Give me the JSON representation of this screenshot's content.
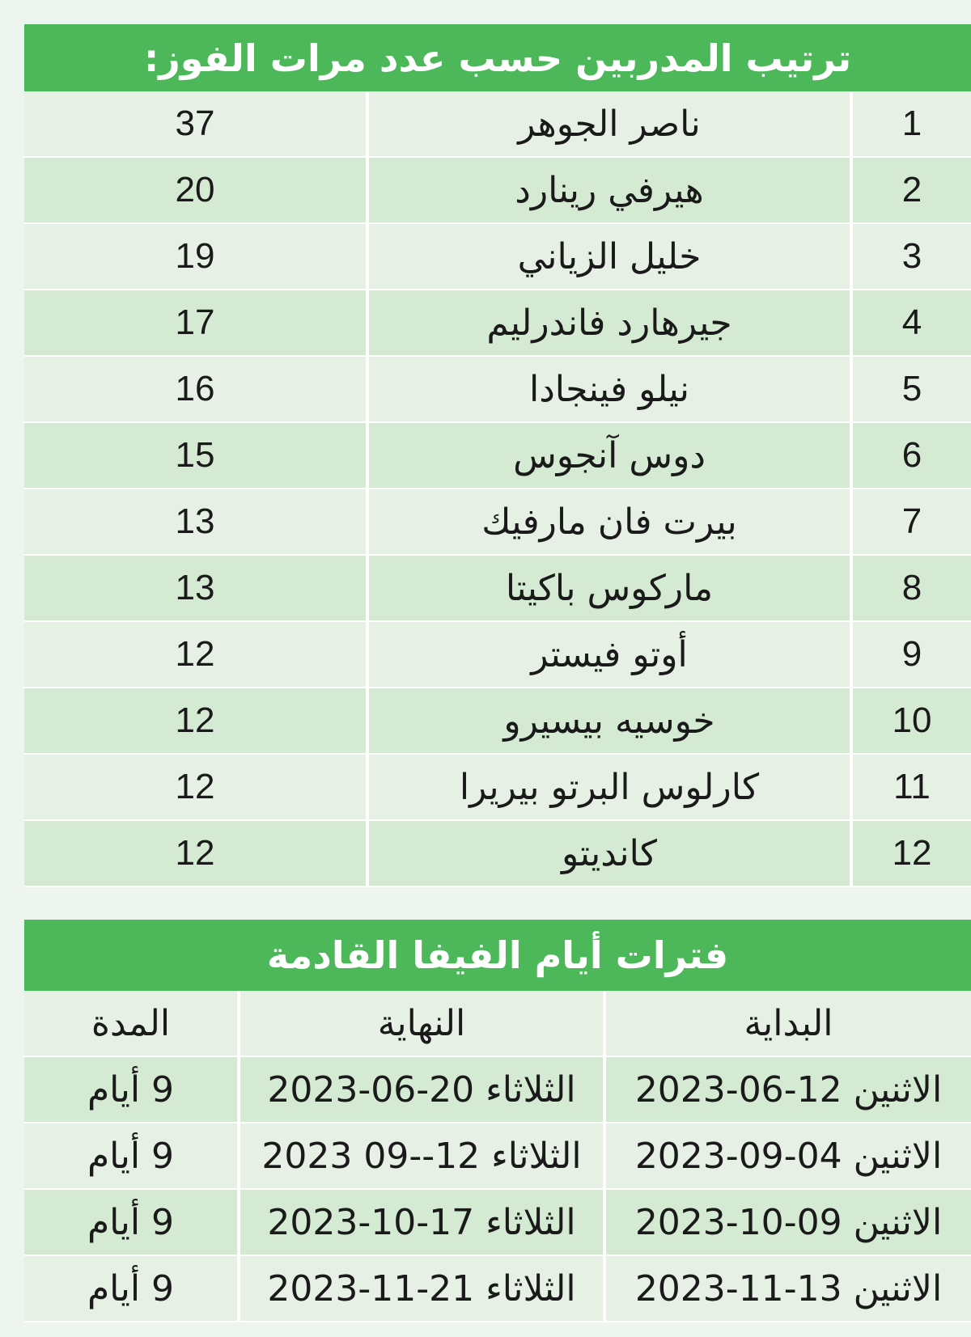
{
  "coaches": {
    "title": "ترتيب المدربين حسب عدد مرات الفوز:",
    "rows": [
      {
        "rank": "1",
        "name": "ناصر الجوهر",
        "wins": "37"
      },
      {
        "rank": "2",
        "name": "هيرفي رينارد",
        "wins": "20"
      },
      {
        "rank": "3",
        "name": "خليل الزياني",
        "wins": "19"
      },
      {
        "rank": "4",
        "name": "جيرهارد فاندرليم",
        "wins": "17"
      },
      {
        "rank": "5",
        "name": "نيلو فينجادا",
        "wins": "16"
      },
      {
        "rank": "6",
        "name": "دوس آنجوس",
        "wins": "15"
      },
      {
        "rank": "7",
        "name": "بيرت فان مارفيك",
        "wins": "13"
      },
      {
        "rank": "8",
        "name": "ماركوس باكيتا",
        "wins": "13"
      },
      {
        "rank": "9",
        "name": "أوتو فيستر",
        "wins": "12"
      },
      {
        "rank": "10",
        "name": "خوسيه بيسيرو",
        "wins": "12"
      },
      {
        "rank": "11",
        "name": "كارلوس البرتو بيريرا",
        "wins": "12"
      },
      {
        "rank": "12",
        "name": "كانديتو",
        "wins": "12"
      }
    ]
  },
  "fifa_days": {
    "title": "فترات أيام الفيفا القادمة",
    "headers": {
      "start": "البداية",
      "end": "النهاية",
      "duration": "المدة"
    },
    "rows": [
      {
        "start": "الاثنين 12-06-2023",
        "end": "الثلاثاء 20-06-2023",
        "duration": "9 أيام"
      },
      {
        "start": "الاثنين 04-09-2023",
        "end": "الثلاثاء 12--09 2023",
        "duration": "9 أيام"
      },
      {
        "start": "الاثنين 09-10-2023",
        "end": "الثلاثاء 17-10-2023",
        "duration": "9 أيام"
      },
      {
        "start": "الاثنين 13-11-2023",
        "end": "الثلاثاء 21-11-2023",
        "duration": "9 أيام"
      }
    ]
  }
}
